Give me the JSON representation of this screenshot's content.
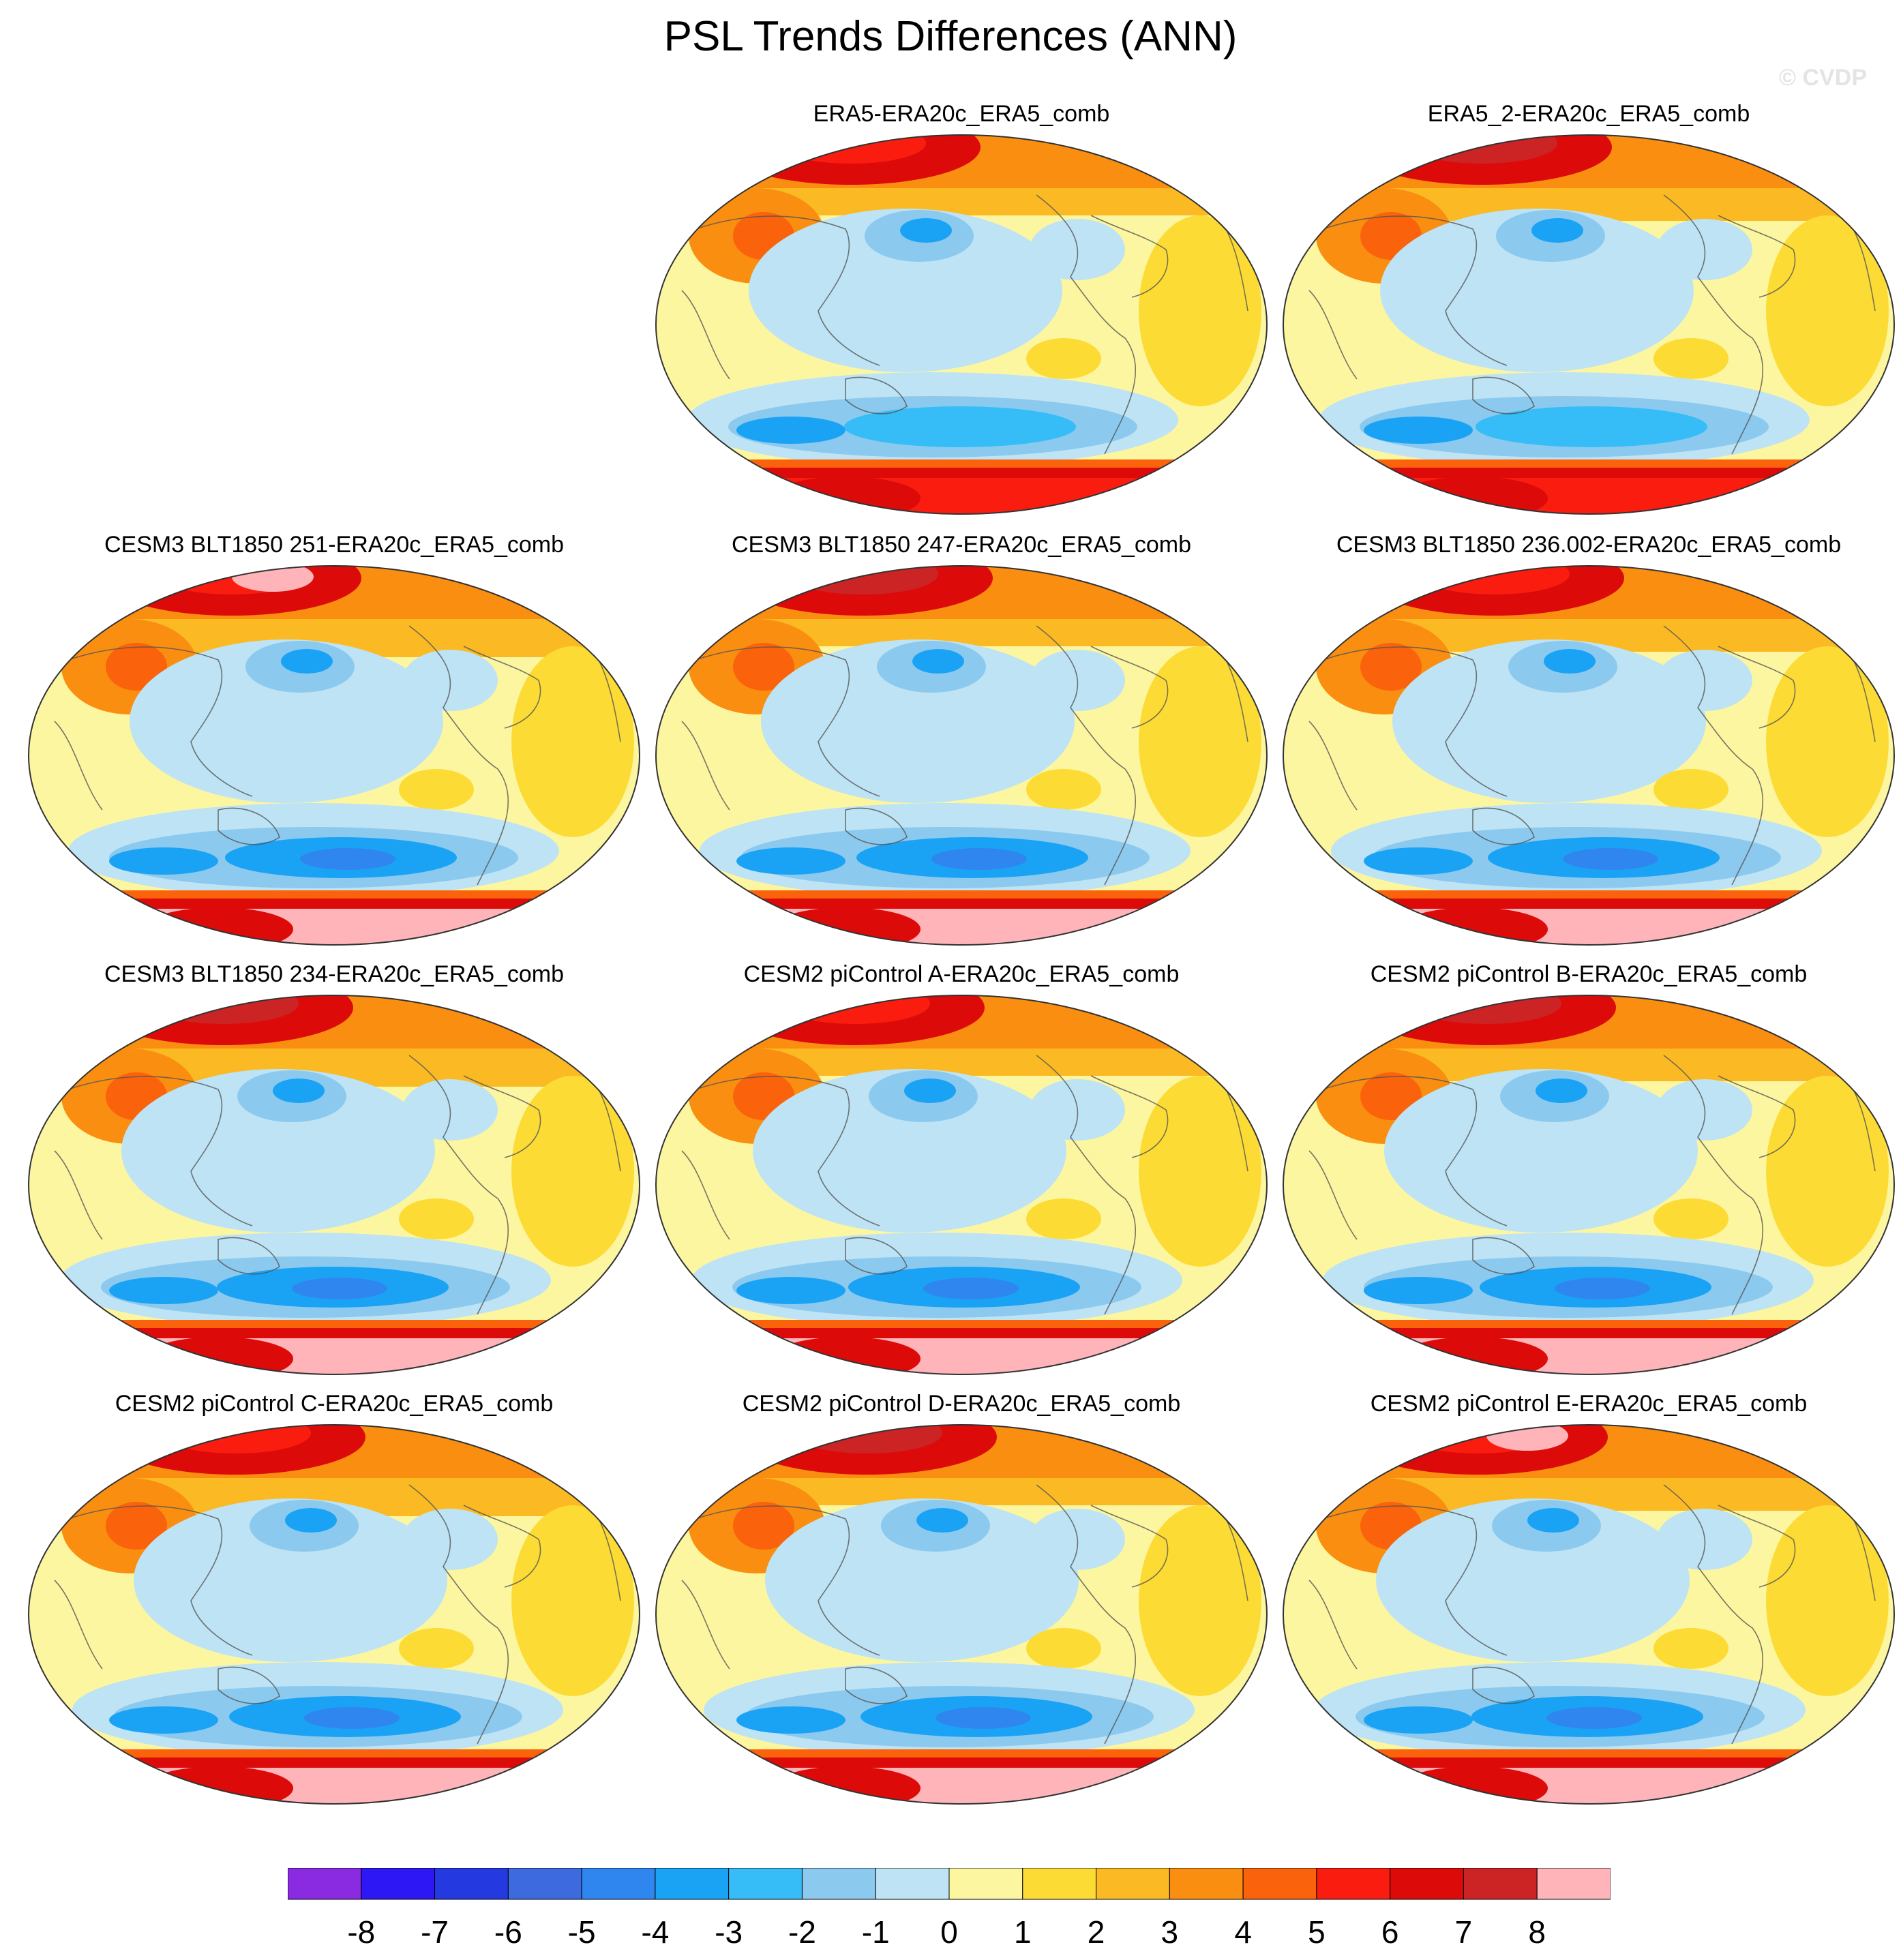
{
  "title": "PSL Trends Differences (ANN)",
  "watermark": "© CVDP",
  "panels": [
    {
      "label": "ERA5-ERA20c_ERA5_comb",
      "variant": 0
    },
    {
      "label": "ERA5_2-ERA20c_ERA5_comb",
      "variant": 1
    },
    {
      "label": "CESM3 BLT1850 251-ERA20c_ERA5_comb",
      "variant": 2
    },
    {
      "label": "CESM3 BLT1850 247-ERA20c_ERA5_comb",
      "variant": 3
    },
    {
      "label": "CESM3 BLT1850 236.002-ERA20c_ERA5_comb",
      "variant": 4
    },
    {
      "label": "CESM3 BLT1850 234-ERA20c_ERA5_comb",
      "variant": 5
    },
    {
      "label": "CESM2 piControl A-ERA20c_ERA5_comb",
      "variant": 6
    },
    {
      "label": "CESM2 piControl B-ERA20c_ERA5_comb",
      "variant": 7
    },
    {
      "label": "CESM2 piControl C-ERA20c_ERA5_comb",
      "variant": 8
    },
    {
      "label": "CESM2 piControl D-ERA20c_ERA5_comb",
      "variant": 9
    },
    {
      "label": "CESM2 piControl E-ERA20c_ERA5_comb",
      "variant": 10
    }
  ],
  "colorbar": {
    "labels": [
      "-8",
      "-7",
      "-6",
      "-5",
      "-4",
      "-3",
      "-2",
      "-1",
      "0",
      "1",
      "2",
      "3",
      "4",
      "5",
      "6",
      "7",
      "8"
    ],
    "colors": [
      "#8a2be2",
      "#2d18f5",
      "#2539e0",
      "#3d6adf",
      "#2f86ef",
      "#1aa3f5",
      "#36bdf7",
      "#8cc9ee",
      "#bde3f4",
      "#fdf6a0",
      "#fddb35",
      "#fbba23",
      "#fa8e10",
      "#fa620c",
      "#fa1d0f",
      "#dd0a0a",
      "#cc2424",
      "#feb4b8"
    ]
  }
}
